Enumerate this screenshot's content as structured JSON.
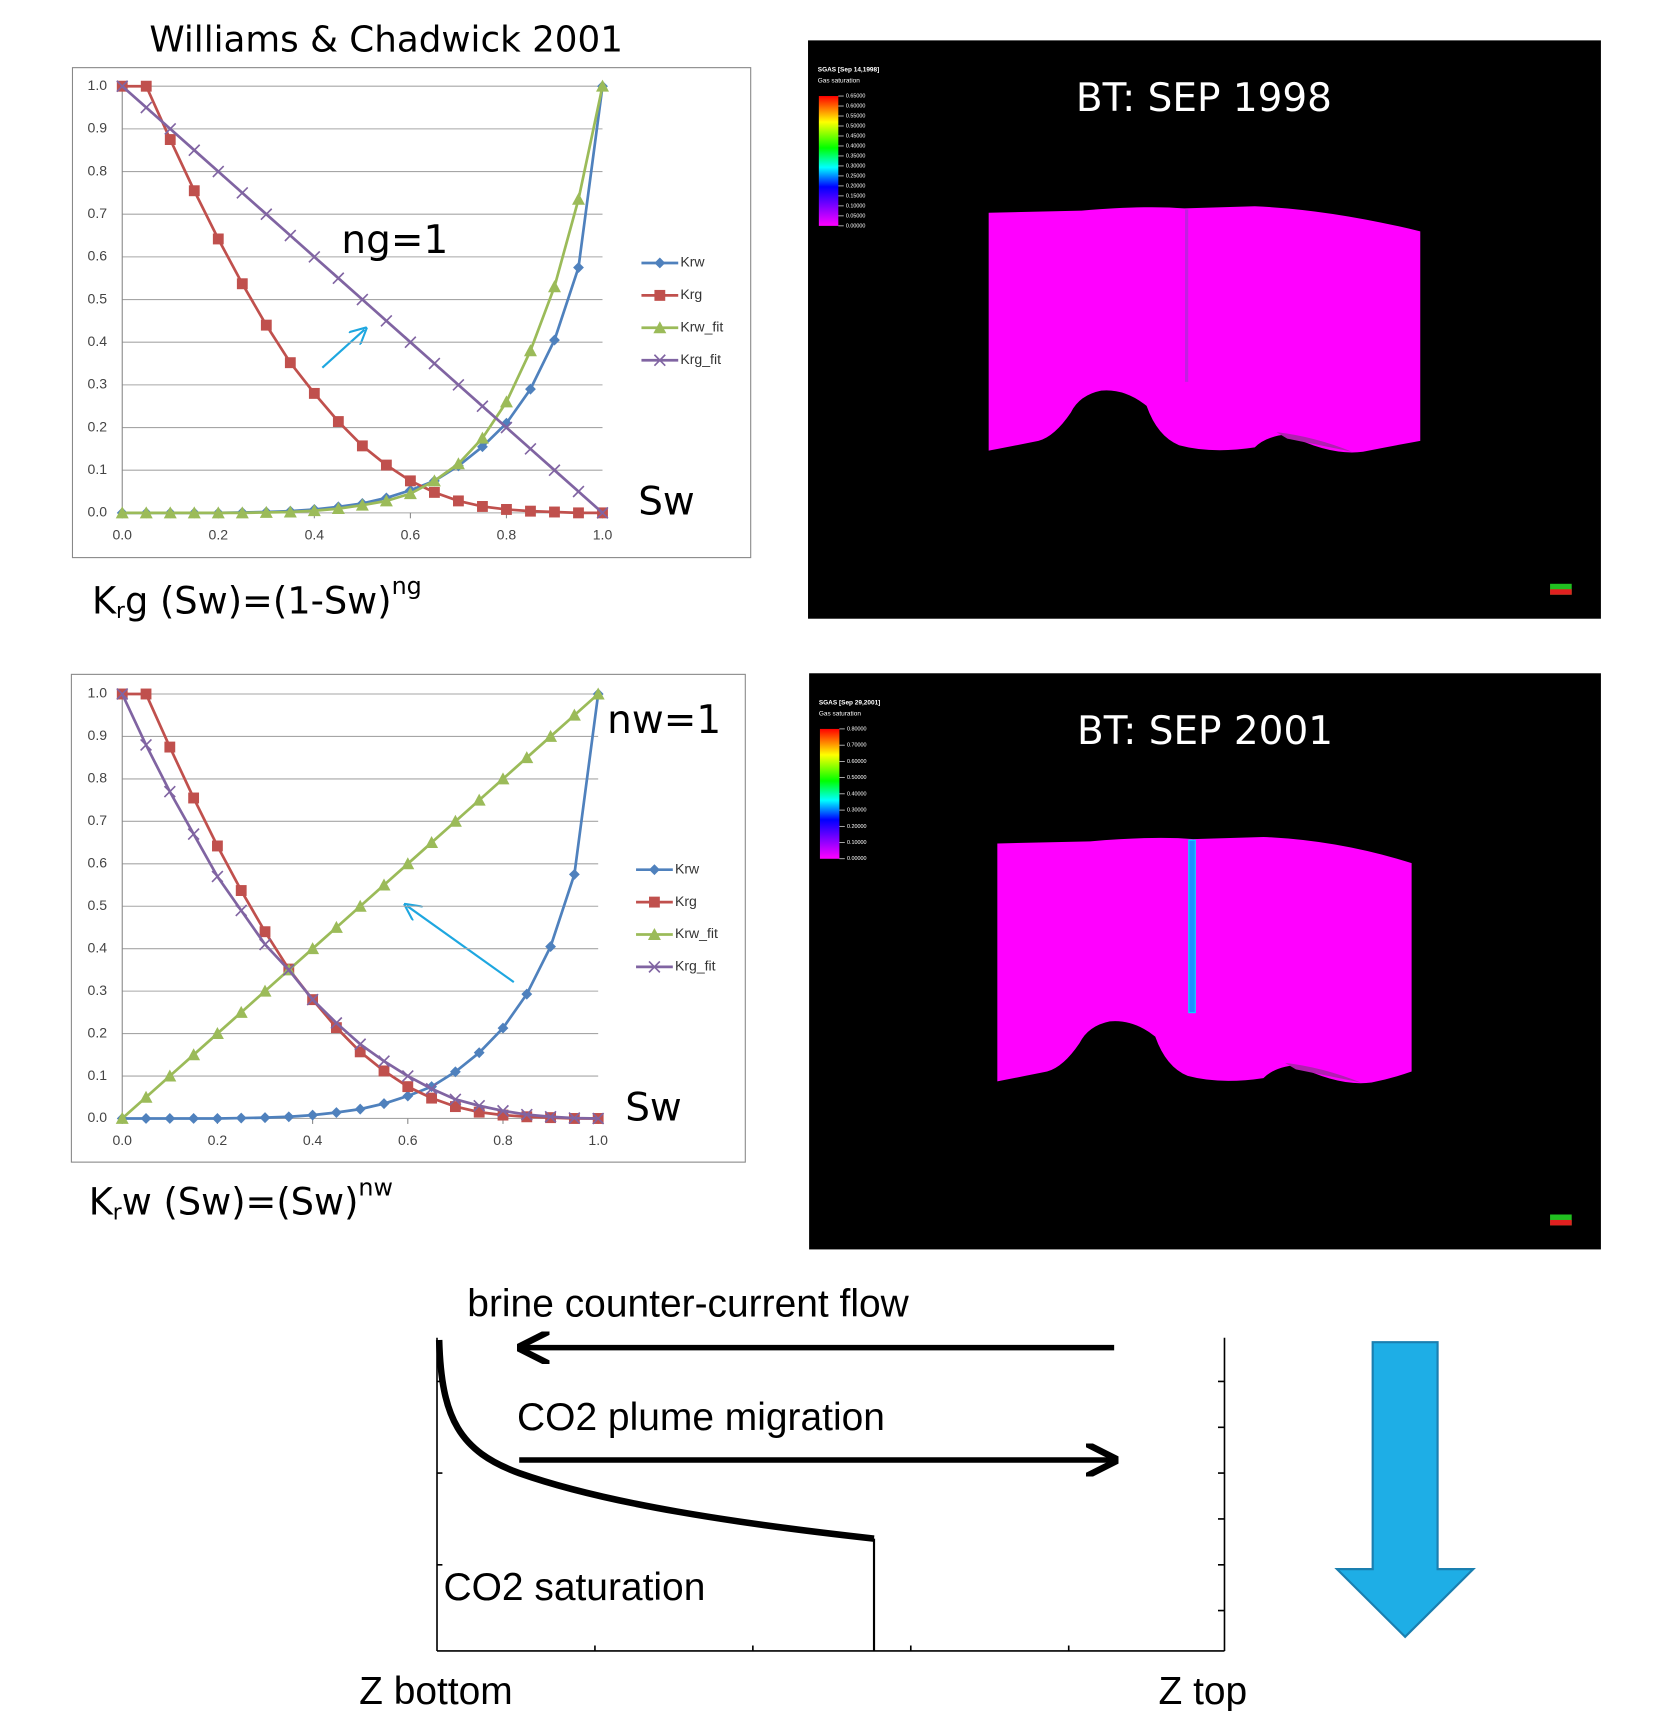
{
  "chart_data": [
    {
      "type": "line",
      "title": "Williams & Chadwick 2001",
      "x": [
        0,
        0.05,
        0.1,
        0.15,
        0.2,
        0.25,
        0.3,
        0.35,
        0.4,
        0.45,
        0.5,
        0.55,
        0.6,
        0.65,
        0.7,
        0.75,
        0.8,
        0.85,
        0.9,
        0.95,
        1.0
      ],
      "series": [
        {
          "name": "Krw",
          "color": "#4f81bd",
          "marker": "diamond",
          "values": [
            0,
            0,
            0,
            0,
            0,
            0.001,
            0.002,
            0.004,
            0.008,
            0.014,
            0.022,
            0.035,
            0.053,
            0.075,
            0.11,
            0.155,
            0.21,
            0.29,
            0.405,
            0.575,
            1.0
          ]
        },
        {
          "name": "Krg",
          "color": "#c0504d",
          "marker": "square",
          "values": [
            1.0,
            1.0,
            0.875,
            0.755,
            0.642,
            0.537,
            0.44,
            0.352,
            0.28,
            0.214,
            0.157,
            0.112,
            0.075,
            0.048,
            0.028,
            0.015,
            0.008,
            0.004,
            0.002,
            0,
            0
          ]
        },
        {
          "name": "Krw_fit",
          "color": "#9bbb59",
          "marker": "triangle",
          "values": [
            0,
            0,
            0,
            0,
            0,
            0,
            0.001,
            0.002,
            0.005,
            0.01,
            0.018,
            0.028,
            0.045,
            0.075,
            0.115,
            0.175,
            0.26,
            0.38,
            0.53,
            0.735,
            1.0
          ]
        },
        {
          "name": "Krg_fit",
          "color": "#8064a2",
          "marker": "x",
          "values": [
            1.0,
            0.95,
            0.9,
            0.85,
            0.8,
            0.75,
            0.7,
            0.65,
            0.6,
            0.55,
            0.5,
            0.45,
            0.4,
            0.35,
            0.3,
            0.25,
            0.2,
            0.15,
            0.1,
            0.05,
            0
          ]
        }
      ],
      "xlim": [
        0,
        1
      ],
      "ylim": [
        0,
        1
      ],
      "xticks": [
        {
          "value": 0,
          "label": "0.0"
        },
        {
          "value": 0.2,
          "label": "0.2"
        },
        {
          "value": 0.4,
          "label": "0.4"
        },
        {
          "value": 0.6,
          "label": "0.6"
        },
        {
          "value": 0.8,
          "label": "0.8"
        },
        {
          "value": 1,
          "label": "1.0"
        }
      ],
      "yticks": [
        {
          "value": 0,
          "label": "0.0"
        },
        {
          "value": 0.1,
          "label": "0.1"
        },
        {
          "value": 0.2,
          "label": "0.2"
        },
        {
          "value": 0.3,
          "label": "0.3"
        },
        {
          "value": 0.4,
          "label": "0.4"
        },
        {
          "value": 0.5,
          "label": "0.5"
        },
        {
          "value": 0.6,
          "label": "0.6"
        },
        {
          "value": 0.7,
          "label": "0.7"
        },
        {
          "value": 0.8,
          "label": "0.8"
        },
        {
          "value": 0.9,
          "label": "0.9"
        },
        {
          "value": 1,
          "label": "1.0"
        }
      ],
      "grid": true,
      "legend": "right",
      "annotations": [
        "ng=1",
        "Sw"
      ],
      "formula": [
        "K",
        "r",
        "g (Sw)=(1-Sw)",
        "ng"
      ]
    },
    {
      "type": "line",
      "x": [
        0,
        0.05,
        0.1,
        0.15,
        0.2,
        0.25,
        0.3,
        0.35,
        0.4,
        0.45,
        0.5,
        0.55,
        0.6,
        0.65,
        0.7,
        0.75,
        0.8,
        0.85,
        0.9,
        0.95,
        1.0
      ],
      "series": [
        {
          "name": "Krw",
          "color": "#4f81bd",
          "marker": "diamond",
          "values": [
            0,
            0,
            0,
            0,
            0,
            0.001,
            0.002,
            0.004,
            0.008,
            0.014,
            0.022,
            0.035,
            0.053,
            0.075,
            0.11,
            0.155,
            0.213,
            0.293,
            0.405,
            0.575,
            1.0
          ]
        },
        {
          "name": "Krg",
          "color": "#c0504d",
          "marker": "square",
          "values": [
            1.0,
            1.0,
            0.875,
            0.755,
            0.642,
            0.537,
            0.44,
            0.352,
            0.28,
            0.214,
            0.157,
            0.112,
            0.075,
            0.048,
            0.028,
            0.015,
            0.008,
            0.004,
            0.002,
            0,
            0
          ]
        },
        {
          "name": "Krw_fit",
          "color": "#9bbb59",
          "marker": "triangle",
          "values": [
            0,
            0.05,
            0.1,
            0.15,
            0.2,
            0.25,
            0.3,
            0.35,
            0.4,
            0.45,
            0.5,
            0.55,
            0.6,
            0.65,
            0.7,
            0.75,
            0.8,
            0.85,
            0.9,
            0.95,
            1.0
          ]
        },
        {
          "name": "Krg_fit",
          "color": "#8064a2",
          "marker": "x",
          "values": [
            1.0,
            0.88,
            0.77,
            0.67,
            0.57,
            0.49,
            0.41,
            0.35,
            0.28,
            0.225,
            0.175,
            0.135,
            0.1,
            0.07,
            0.045,
            0.03,
            0.018,
            0.009,
            0.004,
            0.001,
            0
          ]
        }
      ],
      "xlim": [
        0,
        1
      ],
      "ylim": [
        0,
        1
      ],
      "xticks": [
        {
          "value": 0,
          "label": "0.0"
        },
        {
          "value": 0.2,
          "label": "0.2"
        },
        {
          "value": 0.4,
          "label": "0.4"
        },
        {
          "value": 0.6,
          "label": "0.6"
        },
        {
          "value": 0.8,
          "label": "0.8"
        },
        {
          "value": 1,
          "label": "1.0"
        }
      ],
      "yticks": [
        {
          "value": 0,
          "label": "0.0"
        },
        {
          "value": 0.1,
          "label": "0.1"
        },
        {
          "value": 0.2,
          "label": "0.2"
        },
        {
          "value": 0.3,
          "label": "0.3"
        },
        {
          "value": 0.4,
          "label": "0.4"
        },
        {
          "value": 0.5,
          "label": "0.5"
        },
        {
          "value": 0.6,
          "label": "0.6"
        },
        {
          "value": 0.7,
          "label": "0.7"
        },
        {
          "value": 0.8,
          "label": "0.8"
        },
        {
          "value": 0.9,
          "label": "0.9"
        },
        {
          "value": 1,
          "label": "1.0"
        }
      ],
      "grid": true,
      "legend": "right",
      "annotations": [
        "nw=1",
        "Sw"
      ],
      "formula": [
        "K",
        "r",
        "w (Sw)=(Sw)",
        "nw"
      ]
    }
  ],
  "panels": [
    {
      "title": "BT: SEP 1998",
      "colorbar_title": "SGAS [Sep 14,1998]",
      "colorbar_subtitle": "Gas saturation",
      "colorbar_labels": [
        "0.65000",
        "0.60000",
        "0.55000",
        "0.50000",
        "0.45000",
        "0.40000",
        "0.35000",
        "0.30000",
        "0.25000",
        "0.20000",
        "0.15000",
        "0.10000",
        "0.05000",
        "0.00000"
      ]
    },
    {
      "title": "BT: SEP 2001",
      "colorbar_title": "SGAS [Sep 29,2001]",
      "colorbar_subtitle": "Gas saturation",
      "colorbar_labels": [
        "0.80000",
        "0.70000",
        "0.60000",
        "0.50000",
        "0.40000",
        "0.30000",
        "0.20000",
        "0.10000",
        "0.00000"
      ]
    }
  ],
  "diagram": {
    "flow_top": "brine counter-current flow",
    "flow_bottom": "CO2 plume migration",
    "curve_label": "CO2 saturation",
    "x_left": "Z bottom",
    "x_right": "Z top"
  }
}
